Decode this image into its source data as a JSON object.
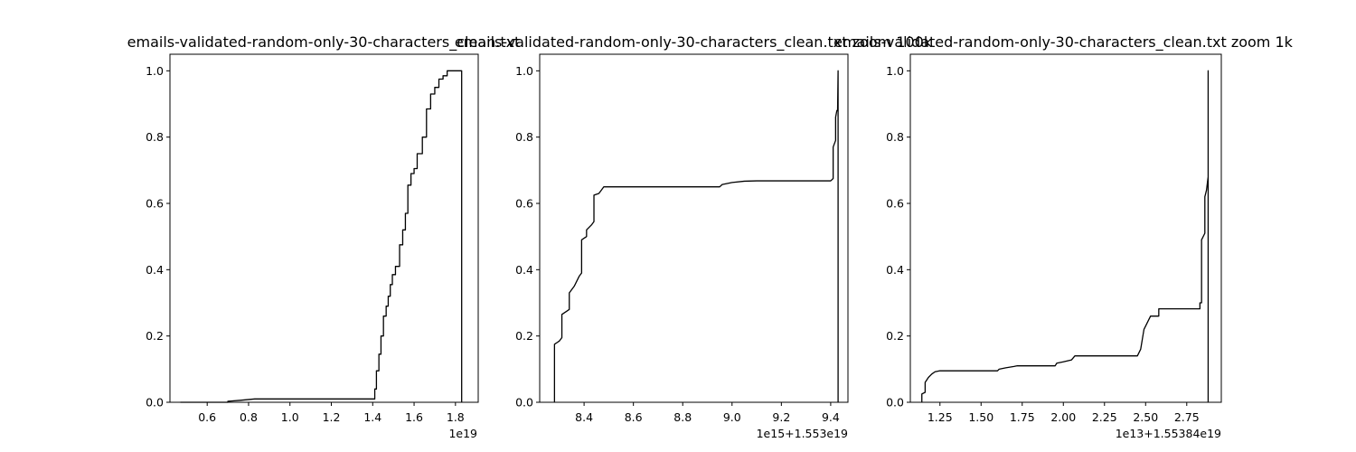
{
  "chart_data": [
    {
      "type": "line",
      "title": "emails-validated-random-only-30-characters_clean.txt",
      "xlim": [
        4.2e+18,
        1.91e+19
      ],
      "ylim": [
        0,
        1.05
      ],
      "x_ticks": [
        {
          "value": 6e+18,
          "label": "0.6"
        },
        {
          "value": 8e+18,
          "label": "0.8"
        },
        {
          "value": 1e+19,
          "label": "1.0"
        },
        {
          "value": 1.2e+19,
          "label": "1.2"
        },
        {
          "value": 1.4e+19,
          "label": "1.4"
        },
        {
          "value": 1.6e+19,
          "label": "1.6"
        },
        {
          "value": 1.8e+19,
          "label": "1.8"
        }
      ],
      "x_offset_label": "1e19",
      "y_ticks": [
        "0.0",
        "0.2",
        "0.4",
        "0.6",
        "0.8",
        "1.0"
      ],
      "grid": false,
      "series": [
        {
          "values": [
            [
              4.7e+18,
              0.0
            ],
            [
              7e+18,
              0.0
            ],
            [
              7e+18,
              0.003
            ],
            [
              7.6e+18,
              0.006
            ],
            [
              8.3e+18,
              0.01
            ],
            [
              1.41e+19,
              0.01
            ],
            [
              1.41e+19,
              0.04
            ],
            [
              1.418e+19,
              0.04
            ],
            [
              1.418e+19,
              0.095
            ],
            [
              1.43e+19,
              0.095
            ],
            [
              1.43e+19,
              0.145
            ],
            [
              1.44e+19,
              0.145
            ],
            [
              1.44e+19,
              0.2
            ],
            [
              1.452e+19,
              0.2
            ],
            [
              1.452e+19,
              0.26
            ],
            [
              1.465e+19,
              0.26
            ],
            [
              1.465e+19,
              0.29
            ],
            [
              1.475e+19,
              0.29
            ],
            [
              1.475e+19,
              0.32
            ],
            [
              1.485e+19,
              0.32
            ],
            [
              1.485e+19,
              0.355
            ],
            [
              1.495e+19,
              0.355
            ],
            [
              1.495e+19,
              0.385
            ],
            [
              1.51e+19,
              0.385
            ],
            [
              1.51e+19,
              0.41
            ],
            [
              1.53e+19,
              0.41
            ],
            [
              1.53e+19,
              0.475
            ],
            [
              1.545e+19,
              0.475
            ],
            [
              1.545e+19,
              0.52
            ],
            [
              1.558e+19,
              0.52
            ],
            [
              1.558e+19,
              0.57
            ],
            [
              1.57e+19,
              0.57
            ],
            [
              1.57e+19,
              0.655
            ],
            [
              1.585e+19,
              0.655
            ],
            [
              1.585e+19,
              0.69
            ],
            [
              1.6e+19,
              0.69
            ],
            [
              1.6e+19,
              0.705
            ],
            [
              1.615e+19,
              0.705
            ],
            [
              1.615e+19,
              0.75
            ],
            [
              1.64e+19,
              0.75
            ],
            [
              1.64e+19,
              0.8
            ],
            [
              1.66e+19,
              0.8
            ],
            [
              1.66e+19,
              0.885
            ],
            [
              1.68e+19,
              0.885
            ],
            [
              1.68e+19,
              0.93
            ],
            [
              1.7e+19,
              0.93
            ],
            [
              1.7e+19,
              0.95
            ],
            [
              1.72e+19,
              0.95
            ],
            [
              1.72e+19,
              0.975
            ],
            [
              1.74e+19,
              0.975
            ],
            [
              1.74e+19,
              0.985
            ],
            [
              1.76e+19,
              0.985
            ],
            [
              1.76e+19,
              1.0
            ],
            [
              1.83e+19,
              1.0
            ],
            [
              1.83e+19,
              0.0
            ]
          ]
        }
      ]
    },
    {
      "type": "line",
      "title": "emails-validated-random-only-30-characters_clean.txt zoom 100k",
      "xlim": [
        8.22,
        9.47
      ],
      "ylim": [
        0,
        1.05
      ],
      "x_ticks": [
        {
          "value": 8.4,
          "label": "8.4"
        },
        {
          "value": 8.6,
          "label": "8.6"
        },
        {
          "value": 8.8,
          "label": "8.8"
        },
        {
          "value": 9.0,
          "label": "9.0"
        },
        {
          "value": 9.2,
          "label": "9.2"
        },
        {
          "value": 9.4,
          "label": "9.4"
        }
      ],
      "x_offset_label": "1e15+1.553e19",
      "y_ticks": [
        "0.0",
        "0.2",
        "0.4",
        "0.6",
        "0.8",
        "1.0"
      ],
      "grid": false,
      "series": [
        {
          "values": [
            [
              8.28,
              0.0
            ],
            [
              8.28,
              0.175
            ],
            [
              8.29,
              0.18
            ],
            [
              8.3,
              0.185
            ],
            [
              8.31,
              0.195
            ],
            [
              8.31,
              0.265
            ],
            [
              8.33,
              0.275
            ],
            [
              8.34,
              0.28
            ],
            [
              8.34,
              0.33
            ],
            [
              8.36,
              0.35
            ],
            [
              8.37,
              0.365
            ],
            [
              8.38,
              0.38
            ],
            [
              8.39,
              0.39
            ],
            [
              8.39,
              0.49
            ],
            [
              8.41,
              0.5
            ],
            [
              8.41,
              0.52
            ],
            [
              8.43,
              0.535
            ],
            [
              8.44,
              0.545
            ],
            [
              8.44,
              0.625
            ],
            [
              8.46,
              0.63
            ],
            [
              8.47,
              0.64
            ],
            [
              8.48,
              0.65
            ],
            [
              8.95,
              0.65
            ],
            [
              8.96,
              0.657
            ],
            [
              9.0,
              0.663
            ],
            [
              9.05,
              0.667
            ],
            [
              9.1,
              0.668
            ],
            [
              9.4,
              0.668
            ],
            [
              9.41,
              0.675
            ],
            [
              9.41,
              0.77
            ],
            [
              9.42,
              0.79
            ],
            [
              9.42,
              0.86
            ],
            [
              9.425,
              0.88
            ],
            [
              9.428,
              0.88
            ],
            [
              9.43,
              1.0
            ],
            [
              9.43,
              0.0
            ]
          ]
        }
      ]
    },
    {
      "type": "line",
      "title": "emails-validated-random-only-30-characters_clean.txt zoom 1k",
      "xlim": [
        1.07,
        2.96
      ],
      "ylim": [
        0,
        1.05
      ],
      "x_ticks": [
        {
          "value": 1.25,
          "label": "1.25"
        },
        {
          "value": 1.5,
          "label": "1.50"
        },
        {
          "value": 1.75,
          "label": "1.75"
        },
        {
          "value": 2.0,
          "label": "2.00"
        },
        {
          "value": 2.25,
          "label": "2.25"
        },
        {
          "value": 2.5,
          "label": "2.50"
        },
        {
          "value": 2.75,
          "label": "2.75"
        }
      ],
      "x_offset_label": "1e13+1.55384e19",
      "y_ticks": [
        "0.0",
        "0.2",
        "0.4",
        "0.6",
        "0.8",
        "1.0"
      ],
      "grid": false,
      "series": [
        {
          "values": [
            [
              1.14,
              0.0
            ],
            [
              1.14,
              0.025
            ],
            [
              1.16,
              0.03
            ],
            [
              1.16,
              0.06
            ],
            [
              1.18,
              0.075
            ],
            [
              1.2,
              0.085
            ],
            [
              1.22,
              0.092
            ],
            [
              1.25,
              0.095
            ],
            [
              1.6,
              0.095
            ],
            [
              1.61,
              0.1
            ],
            [
              1.65,
              0.104
            ],
            [
              1.7,
              0.108
            ],
            [
              1.72,
              0.11
            ],
            [
              1.95,
              0.11
            ],
            [
              1.96,
              0.118
            ],
            [
              2.0,
              0.122
            ],
            [
              2.05,
              0.128
            ],
            [
              2.07,
              0.14
            ],
            [
              2.45,
              0.14
            ],
            [
              2.47,
              0.16
            ],
            [
              2.48,
              0.19
            ],
            [
              2.49,
              0.22
            ],
            [
              2.5,
              0.23
            ],
            [
              2.52,
              0.25
            ],
            [
              2.53,
              0.26
            ],
            [
              2.58,
              0.26
            ],
            [
              2.58,
              0.282
            ],
            [
              2.83,
              0.282
            ],
            [
              2.83,
              0.3
            ],
            [
              2.84,
              0.3
            ],
            [
              2.84,
              0.49
            ],
            [
              2.86,
              0.51
            ],
            [
              2.86,
              0.62
            ],
            [
              2.87,
              0.64
            ],
            [
              2.875,
              0.66
            ],
            [
              2.88,
              0.68
            ],
            [
              2.88,
              1.0
            ],
            [
              2.88,
              0.0
            ]
          ]
        }
      ]
    }
  ]
}
